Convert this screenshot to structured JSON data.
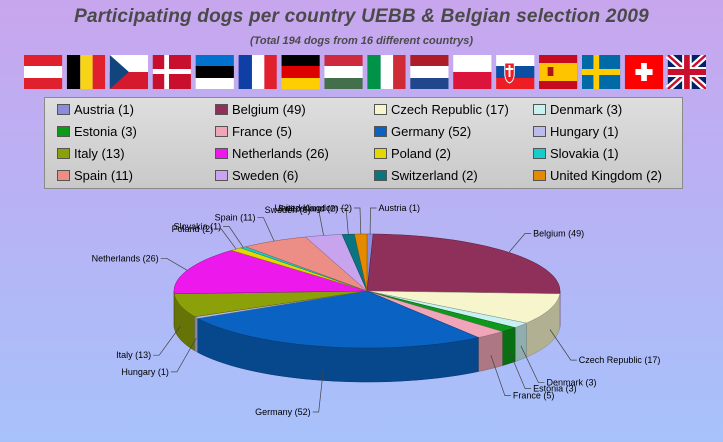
{
  "title": "Participating dogs per country UEBB & Belgian selection 2009",
  "subtitle": "(Total 194 dogs from 16 different countrys)",
  "flags": [
    "Austria",
    "Belgium",
    "Czech Republic",
    "Denmark",
    "Estonia",
    "France",
    "Germany",
    "Hungary",
    "Italy",
    "Netherlands",
    "Poland",
    "Slovakia",
    "Spain",
    "Sweden",
    "Switzerland",
    "United Kingdom"
  ],
  "chart_data": {
    "type": "pie",
    "title": "Participating dogs per country UEBB & Belgian selection 2009",
    "subtitle": "(Total 194 dogs from 16 different countrys)",
    "legend_position": "top",
    "categories": [
      "Austria",
      "Belgium",
      "Czech Republic",
      "Denmark",
      "Estonia",
      "France",
      "Germany",
      "Hungary",
      "Italy",
      "Netherlands",
      "Poland",
      "Slovakia",
      "Spain",
      "Sweden",
      "Switzerland",
      "United Kingdom"
    ],
    "values": [
      1,
      49,
      17,
      3,
      3,
      5,
      52,
      1,
      13,
      26,
      2,
      1,
      11,
      6,
      2,
      2
    ],
    "colors": [
      "#8c8cde",
      "#8e305a",
      "#f6f5cc",
      "#c8f2f2",
      "#0c9a1a",
      "#f0a6b8",
      "#0a62c2",
      "#bcbcec",
      "#8ca00a",
      "#ec18ec",
      "#e4d800",
      "#18cccc",
      "#ec8e86",
      "#c8a4ee",
      "#0a7480",
      "#e48a00"
    ],
    "legend_labels": [
      "Austria (1)",
      "Belgium (49)",
      "Czech Republic (17)",
      "Denmark (3)",
      "Estonia (3)",
      "France (5)",
      "Germany (52)",
      "Hungary (1)",
      "Italy (13)",
      "Netherlands (26)",
      "Poland (2)",
      "Slovakia (1)",
      "Spain (11)",
      "Sweden (6)",
      "Switzerland (2)",
      "United Kingdom (2)"
    ],
    "data_labels": [
      "Austria (1)",
      "Belgium (49)",
      "Czech Republic (17)",
      "Denmark (3)",
      "Estonia (3)",
      "France (5)",
      "Germany (52)",
      "Hungary (1)",
      "Italy (13)",
      "Netherlands (26)",
      "Poland (2)",
      "Slovakia (1)",
      "Spain (11)",
      "Sweden (6)",
      "Switzerland (2)",
      "United Kingdom (2)"
    ]
  }
}
